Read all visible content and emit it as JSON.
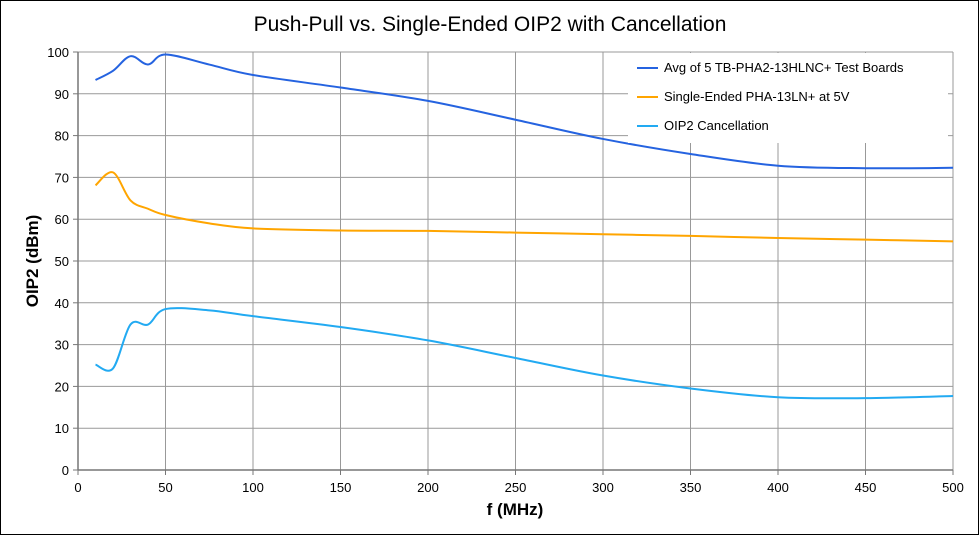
{
  "chart_data": {
    "type": "line",
    "title": "Push-Pull vs. Single-Ended OIP2 with Cancellation",
    "xlabel": "f (MHz)",
    "ylabel": "OIP2 (dBm)",
    "xlim": [
      0,
      500
    ],
    "ylim": [
      0,
      100
    ],
    "xticks": [
      0,
      50,
      100,
      150,
      200,
      250,
      300,
      350,
      400,
      450,
      500
    ],
    "yticks": [
      0,
      10,
      20,
      30,
      40,
      50,
      60,
      70,
      80,
      90,
      100
    ],
    "grid": true,
    "legend_placement": "top-right",
    "x": [
      10,
      20,
      30,
      40,
      50,
      75,
      100,
      150,
      200,
      250,
      300,
      350,
      400,
      450,
      500
    ],
    "series": [
      {
        "name": "Avg of 5 TB-PHA2-13HLNC+ Test Boards",
        "color": "#2563e0",
        "values": [
          93.3,
          95.5,
          99.0,
          97.0,
          99.4,
          97.0,
          94.5,
          91.5,
          88.3,
          83.8,
          79.2,
          75.6,
          72.8,
          72.2,
          72.3
        ]
      },
      {
        "name": "Single-Ended PHA-13LN+ at 5V",
        "color": "#ffa500",
        "values": [
          68.1,
          71.2,
          64.5,
          62.5,
          61.0,
          59.0,
          57.8,
          57.3,
          57.2,
          56.8,
          56.4,
          56.0,
          55.5,
          55.1,
          54.7
        ]
      },
      {
        "name": "OIP2 Cancellation",
        "color": "#22aaf2",
        "values": [
          25.2,
          24.3,
          34.8,
          34.8,
          38.5,
          38.2,
          36.8,
          34.2,
          31.0,
          26.8,
          22.6,
          19.5,
          17.4,
          17.2,
          17.7
        ]
      }
    ]
  }
}
